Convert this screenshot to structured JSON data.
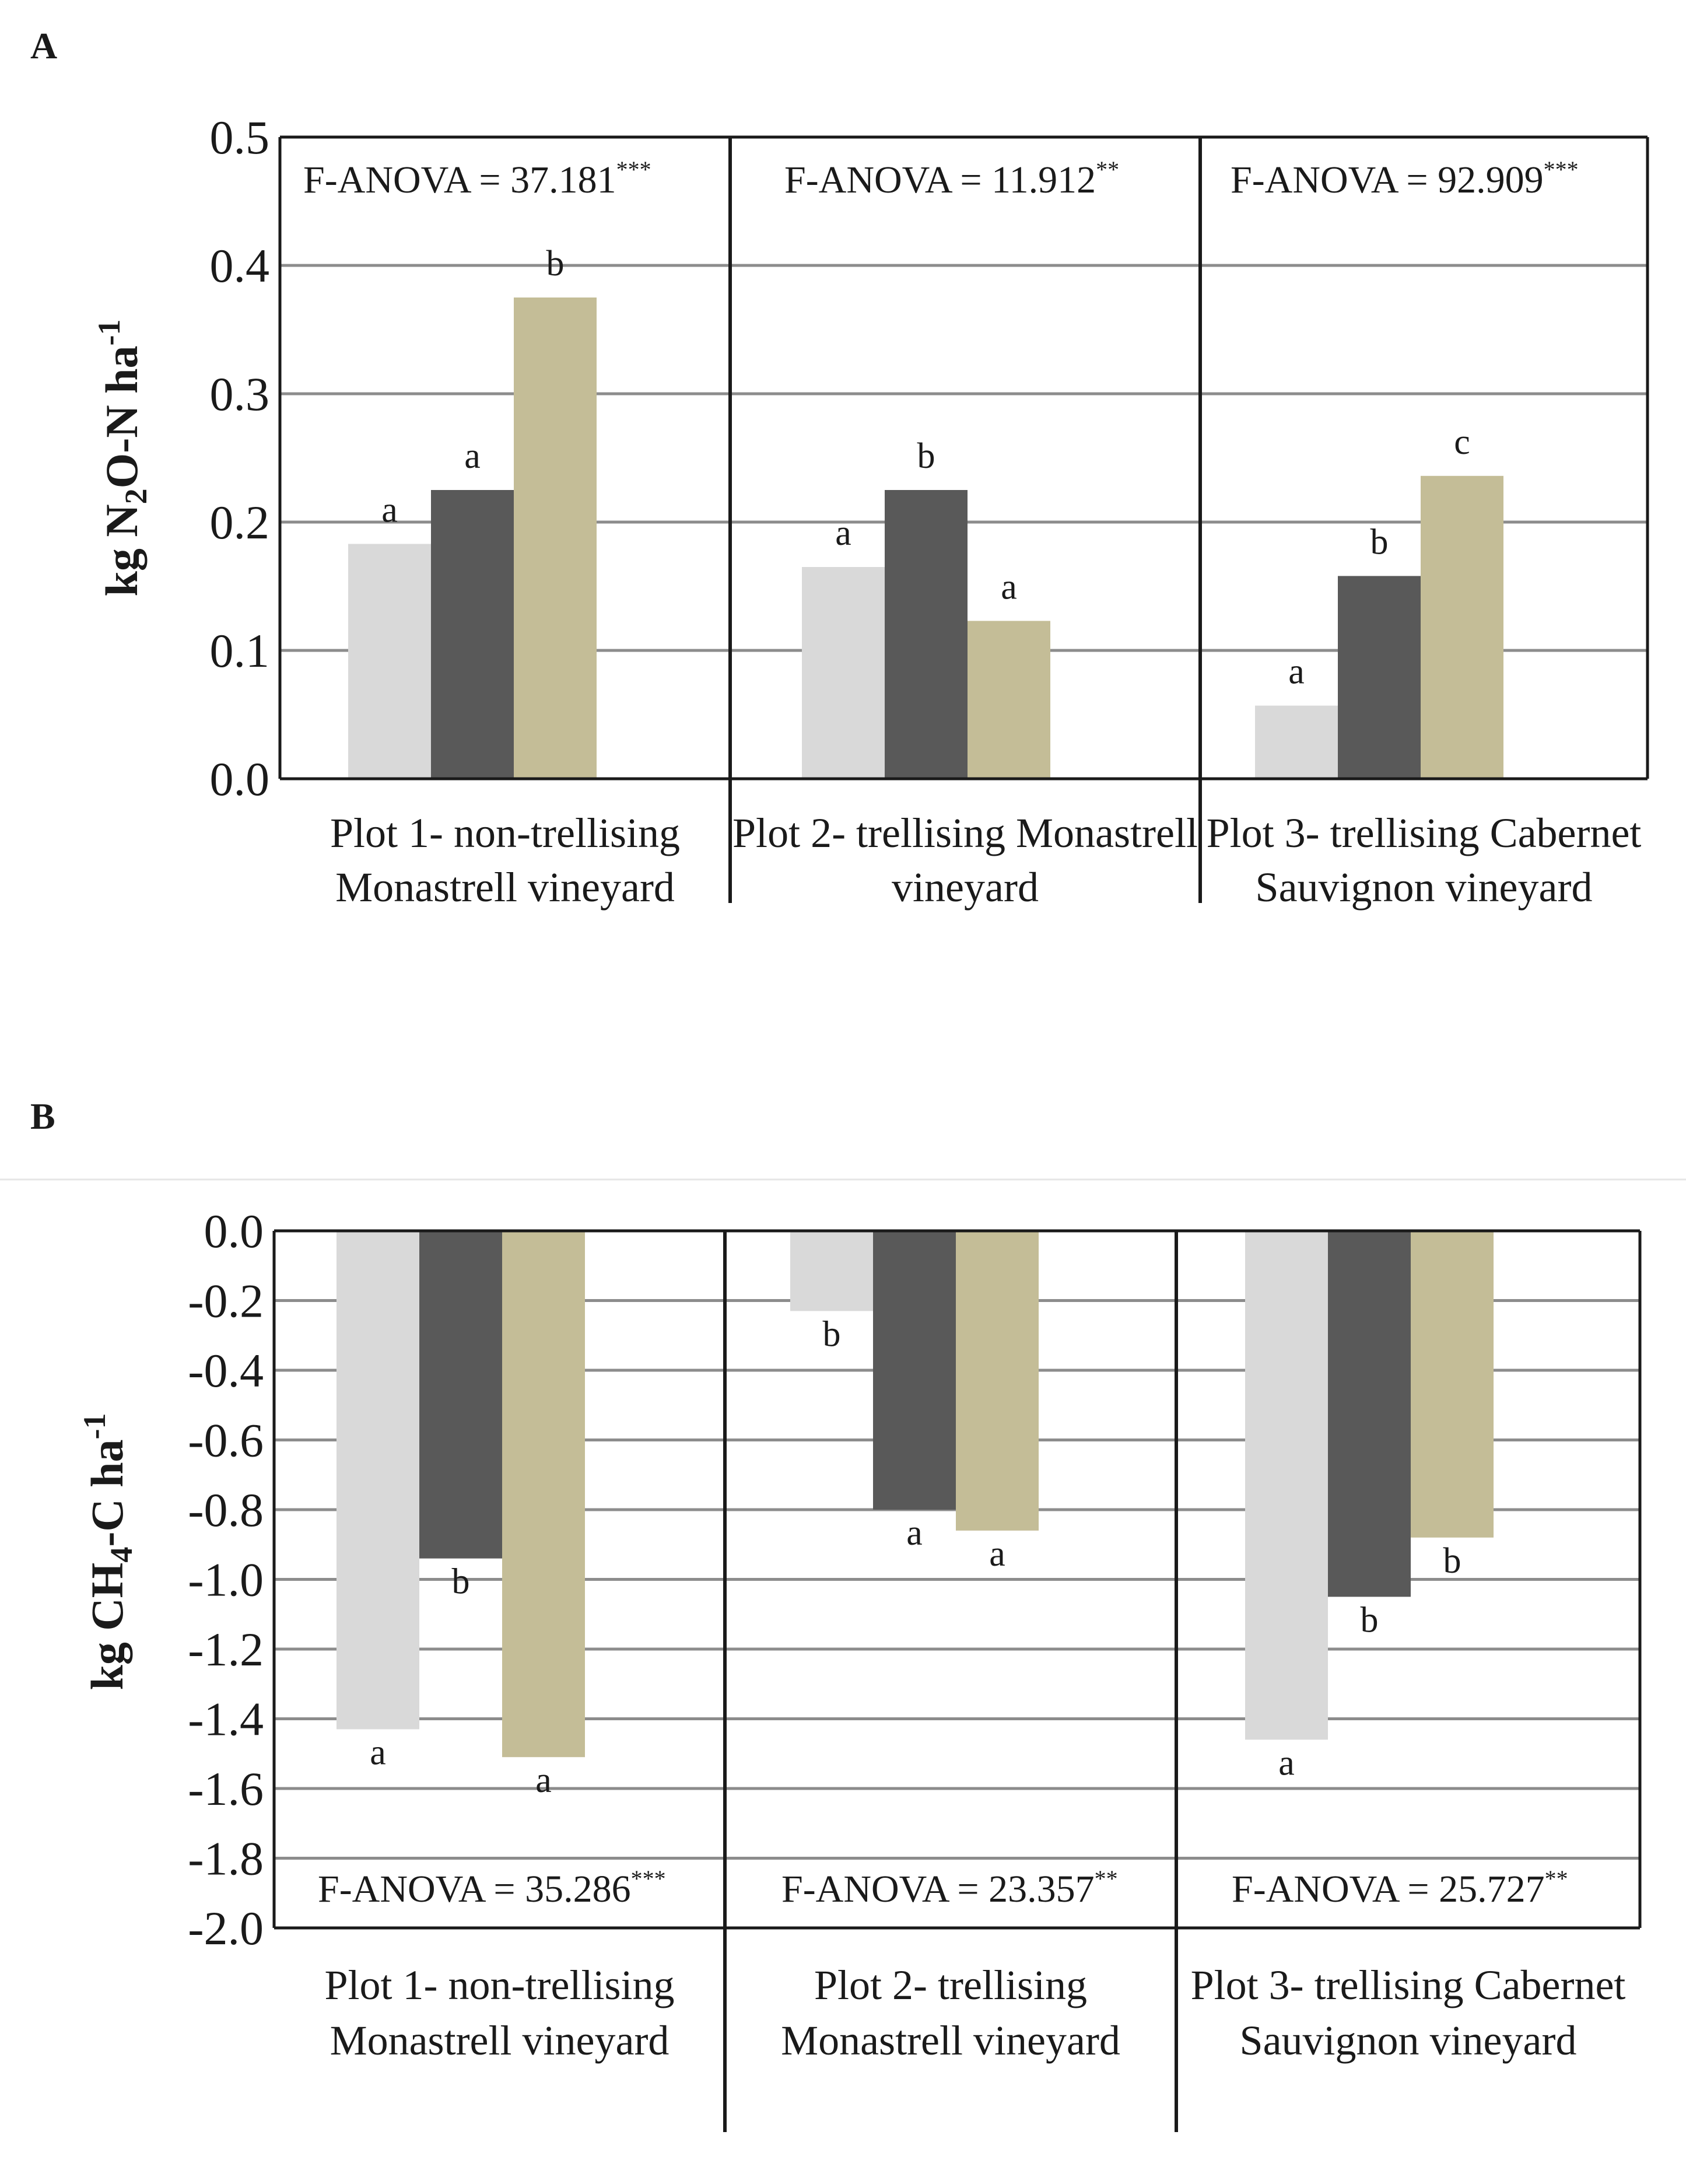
{
  "chart_data": [
    {
      "panel": "A",
      "type": "bar",
      "ylabel": "kg N2O-N ha-1",
      "ylabel_parts": {
        "pre": "kg N",
        "sub": "2",
        "mid": "O-N ha",
        "sup": "-1"
      },
      "ylim": [
        0,
        0.5
      ],
      "yticks": [
        "0.0",
        "0.1",
        "0.2",
        "0.3",
        "0.4",
        "0.5"
      ],
      "categories": [
        [
          "Plot 1- non-trellising",
          "Monastrell vineyard"
        ],
        [
          "Plot 2- trellising Monastrell",
          "vineyard"
        ],
        [
          "Plot 3- trellising Cabernet",
          "Sauvignon vineyard"
        ]
      ],
      "series": [
        {
          "name": "series-1",
          "values": [
            0.183,
            0.165,
            0.057
          ],
          "letters": [
            "a",
            "a",
            "a"
          ]
        },
        {
          "name": "series-2",
          "values": [
            0.225,
            0.225,
            0.158
          ],
          "letters": [
            "a",
            "b",
            "b"
          ]
        },
        {
          "name": "series-3",
          "values": [
            0.375,
            0.123,
            0.236
          ],
          "letters": [
            "b",
            "a",
            "c"
          ]
        }
      ],
      "anova": [
        {
          "label": "F-ANOVA  = 37.181",
          "stars": "***"
        },
        {
          "label": "F-ANOVA  = 11.912",
          "stars": "**"
        },
        {
          "label": "F-ANOVA  = 92.909",
          "stars": "***"
        }
      ],
      "grid": true
    },
    {
      "panel": "B",
      "type": "bar",
      "ylabel": "kg CH4-C ha-1",
      "ylabel_parts": {
        "pre": "kg CH",
        "sub": "4",
        "mid": "-C ha",
        "sup": "-1"
      },
      "ylim": [
        -2.0,
        0.0
      ],
      "yticks": [
        "0.0",
        "-0.2",
        "-0.4",
        "-0.6",
        "-0.8",
        "-1.0",
        "-1.2",
        "-1.4",
        "-1.6",
        "-1.8",
        "-2.0"
      ],
      "categories": [
        [
          "Plot 1- non-trellising",
          "Monastrell vineyard"
        ],
        [
          "Plot 2- trellising",
          "Monastrell vineyard"
        ],
        [
          "Plot 3- trellising Cabernet",
          "Sauvignon vineyard"
        ]
      ],
      "series": [
        {
          "name": "series-1",
          "values": [
            -1.43,
            -0.23,
            -1.46
          ],
          "letters": [
            "a",
            "b",
            "a"
          ]
        },
        {
          "name": "series-2",
          "values": [
            -0.94,
            -0.8,
            -1.05
          ],
          "letters": [
            "b",
            "a",
            "b"
          ]
        },
        {
          "name": "series-3",
          "values": [
            -1.51,
            -0.86,
            -0.88
          ],
          "letters": [
            "a",
            "a",
            "b"
          ]
        }
      ],
      "anova": [
        {
          "label": "F-ANOVA  = 35.286",
          "stars": "***"
        },
        {
          "label": "F-ANOVA  = 23.357",
          "stars": "**"
        },
        {
          "label": "F-ANOVA  = 25.727",
          "stars": "**"
        }
      ],
      "grid": true
    }
  ],
  "colors": {
    "series": [
      "#d9d9d9",
      "#595959",
      "#c4bd97"
    ],
    "grid": "#8c8c8c",
    "frame": "#1a1a1a",
    "text": "#1a1a1a"
  }
}
